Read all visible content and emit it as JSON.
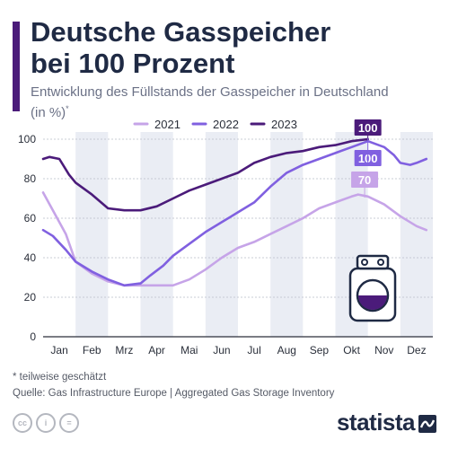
{
  "header": {
    "title_line1": "Deutsche Gasspeicher",
    "title_line2": "bei 100 Prozent",
    "subtitle_line1": "Entwicklung des Füllstands der Gasspeicher in Deutschland",
    "subtitle_line2": "(in %)",
    "subtitle_mark": "*"
  },
  "footer": {
    "note": "* teilweise geschätzt",
    "source": "Quelle: Gas Infrastructure Europe | Aggregated Gas Storage Inventory",
    "license_icons": [
      "cc-icon",
      "person-icon",
      "equals-icon"
    ],
    "license_glyphs": [
      "cc",
      "i",
      "="
    ],
    "brand": "statista"
  },
  "colors": {
    "title": "#1f2a44",
    "accent": "#4b1b7a",
    "2021": "#c6a4e8",
    "2022": "#8060e0",
    "2023": "#4b1b7a",
    "band": "#eaedf4",
    "grid": "#b9bdc7"
  },
  "chart_data": {
    "type": "line",
    "title": "Deutsche Gasspeicher bei 100 Prozent",
    "ylabel": "",
    "xlabel": "",
    "ylim": [
      0,
      100
    ],
    "yticks": [
      0,
      20,
      40,
      60,
      80,
      100
    ],
    "xlim": [
      0,
      12
    ],
    "months": [
      "Jan",
      "Feb",
      "Mrz",
      "Apr",
      "Mai",
      "Jun",
      "Jul",
      "Aug",
      "Sep",
      "Okt",
      "Nov",
      "Dez"
    ],
    "grid": "horizontal",
    "legend_position": "top",
    "series": [
      {
        "name": "2021",
        "x": [
          0,
          0.3,
          0.7,
          1.0,
          1.5,
          2.0,
          2.5,
          3.0,
          3.5,
          4.0,
          4.5,
          5.0,
          5.5,
          6.0,
          6.5,
          7.0,
          7.5,
          8.0,
          8.5,
          9.0,
          9.5,
          9.7,
          10.0,
          10.5,
          11.0,
          11.5,
          11.8
        ],
        "y": [
          73,
          64,
          52,
          38,
          32,
          28,
          26,
          26,
          26,
          26,
          29,
          34,
          40,
          45,
          48,
          52,
          56,
          60,
          65,
          68,
          71,
          72,
          71,
          67,
          61,
          56,
          54
        ],
        "end_label": "70",
        "end_label_x": 9.9,
        "end_label_y": 70
      },
      {
        "name": "2022",
        "x": [
          0,
          0.3,
          0.7,
          1.0,
          1.5,
          2.0,
          2.5,
          3.0,
          3.3,
          3.7,
          4.0,
          4.5,
          5.0,
          5.5,
          6.0,
          6.5,
          7.0,
          7.5,
          8.0,
          8.5,
          9.0,
          9.5,
          10.0,
          10.5,
          10.8,
          11.0,
          11.3,
          11.5,
          11.8
        ],
        "y": [
          54,
          51,
          44,
          38,
          33,
          29,
          26,
          27,
          31,
          36,
          41,
          47,
          53,
          58,
          63,
          68,
          76,
          83,
          87,
          90,
          93,
          96,
          99,
          96,
          92,
          88,
          87,
          88,
          90
        ],
        "end_label": "100",
        "end_label_x": 10.0,
        "end_label_y": 100
      },
      {
        "name": "2023",
        "x": [
          0,
          0.2,
          0.5,
          0.8,
          1.0,
          1.5,
          2.0,
          2.5,
          3.0,
          3.5,
          4.0,
          4.5,
          5.0,
          5.5,
          6.0,
          6.5,
          7.0,
          7.5,
          8.0,
          8.5,
          9.0,
          9.5,
          10.0
        ],
        "y": [
          90,
          91,
          90,
          82,
          78,
          72,
          65,
          64,
          64,
          66,
          70,
          74,
          77,
          80,
          83,
          88,
          91,
          93,
          94,
          96,
          97,
          99,
          100
        ],
        "end_label": "100",
        "end_label_x": 10.0,
        "end_label_y": 100
      }
    ]
  }
}
